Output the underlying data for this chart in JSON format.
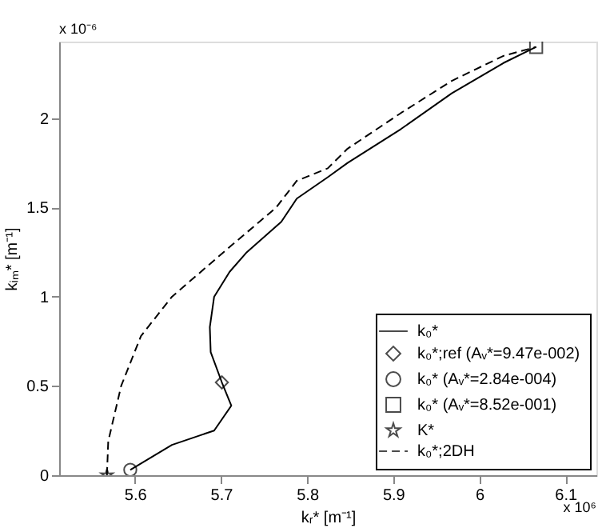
{
  "chart_data": {
    "type": "line",
    "xlabel": "kᵣ* [m⁻¹]",
    "ylabel": "kᵢₘ* [m⁻¹]",
    "annotations": [
      "x 10⁻⁶",
      "x 10⁶"
    ],
    "xlim": [
      5.512,
      6.136
    ],
    "xticks": [
      5.6,
      5.7,
      5.8,
      5.9,
      6,
      6.1
    ],
    "ylim": [
      0,
      2.43
    ],
    "yticks": [
      0,
      0.5,
      1,
      1.5,
      2
    ],
    "grid": false,
    "legend": "bottom right",
    "series": [
      {
        "name": "k₀*",
        "line_style": "solid",
        "color": "#000000",
        "x": [
          5.5946,
          5.643,
          5.692,
          5.712,
          5.701,
          5.688,
          5.687,
          5.692,
          5.71,
          5.73,
          5.77,
          5.788,
          5.824,
          5.847,
          5.909,
          5.968,
          6.028,
          6.066
        ],
        "values": [
          0.03,
          0.17,
          0.25,
          0.39,
          0.52,
          0.69,
          0.83,
          1.0,
          1.14,
          1.25,
          1.42,
          1.55,
          1.67,
          1.75,
          1.94,
          2.14,
          2.31,
          2.4
        ]
      },
      {
        "name": "k₀*;ref (Aᵥ*=9.47e-002)",
        "type": "scatter",
        "marker": "diamond",
        "color": "#000000",
        "x": [
          5.701
        ],
        "values": [
          0.52
        ]
      },
      {
        "name": "k₀* (Aᵥ*=2.84e-004)",
        "type": "scatter",
        "marker": "circle",
        "color": "#000000",
        "x": [
          5.5946
        ],
        "values": [
          0.03
        ]
      },
      {
        "name": "k₀* (Aᵥ*=8.52e-001)",
        "type": "scatter",
        "marker": "square",
        "color": "#000000",
        "x": [
          6.066
        ],
        "values": [
          2.4
        ]
      },
      {
        "name": "K*",
        "type": "scatter",
        "marker": "star",
        "color": "#000000",
        "x": [
          5.5675
        ],
        "values": [
          0
        ]
      },
      {
        "name": "k₀*;2DH",
        "line_style": "dashed",
        "color": "#000000",
        "x": [
          5.5675,
          5.569,
          5.584,
          5.607,
          5.643,
          5.703,
          5.764,
          5.788,
          5.824,
          5.847,
          5.909,
          5.968,
          6.028,
          6.066
        ],
        "values": [
          0,
          0.19,
          0.5,
          0.78,
          1.0,
          1.25,
          1.5,
          1.65,
          1.72,
          1.83,
          2.03,
          2.21,
          2.35,
          2.4
        ]
      }
    ]
  }
}
